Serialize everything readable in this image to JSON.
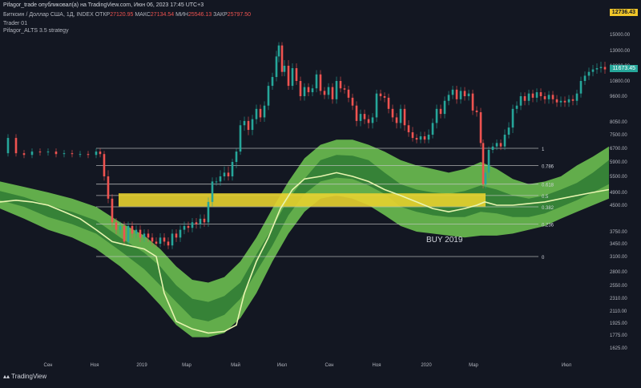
{
  "header": {
    "title": "Pifagor_trade опубликовал(а) на TradingView.com, Июн 06, 2023 17:45 UTC+3",
    "symbol": "Биткоин / Доллар США, 1Д, INDEX",
    "open_label": "ОТКР",
    "open_value": "27120.95",
    "high_label": "МАКС",
    "high_value": "27134.54",
    "low_label": "МИН",
    "low_value": "25546.13",
    "close_label": "ЗАКР",
    "close_value": "25797.50",
    "indicator1": "Trader 01",
    "indicator2": "Pifagor_ALTS 3.5 strategy"
  },
  "price_badges": {
    "current": "12736.43",
    "secondary": "11673.45"
  },
  "footer": {
    "brand": "TradingView"
  },
  "colors": {
    "background": "#131722",
    "band_light": "#7ee05a",
    "band_dark": "#2f7a34",
    "zone": "#e8d22f",
    "fib_line": "#c8c8c8",
    "candle_up": "#26a69a",
    "candle_down": "#ef5350"
  },
  "chart_data": {
    "type": "candlestick with bands",
    "title": "",
    "xlabel": "",
    "ylabel": "",
    "x_ticks": [
      "Сен",
      "Ноя",
      "2019",
      "Мар",
      "Май",
      "Июл",
      "Сен",
      "Ноя",
      "2020",
      "Мар",
      "Июл"
    ],
    "y_ticks": [
      15000,
      13000,
      12000,
      10800,
      9600,
      8050,
      7500,
      6700,
      5900,
      5500,
      4900,
      4500,
      3750,
      3450,
      3100,
      2800,
      2550,
      2310,
      2110,
      1925,
      1775,
      1625
    ],
    "y_tick_labels": [
      "15000.00",
      "13000.00",
      "12000.00",
      "10800.00",
      "9600.00",
      "8050.00",
      "7500.00",
      "6700.00",
      "5900.00",
      "5500.00",
      "4900.00",
      "4500.00",
      "3750.00",
      "3450.00",
      "3100.00",
      "2800.00",
      "2550.00",
      "2310.00",
      "2110.00",
      "1925.00",
      "1775.00",
      "1625.00"
    ],
    "fib_levels": [
      {
        "label": "1",
        "price": 6700
      },
      {
        "label": "0.786",
        "price": 5800
      },
      {
        "label": "0.618",
        "price": 5200
      },
      {
        "label": "0.5",
        "price": 4800
      },
      {
        "label": "0.382",
        "price": 4450
      },
      {
        "label": "0.236",
        "price": 3950
      },
      {
        "label": "0",
        "price": 3100
      }
    ],
    "zone": {
      "label": "BUY 2019",
      "from_price": 4460,
      "to_price": 4870
    },
    "close_series": [
      [
        0,
        6400
      ],
      [
        10,
        7300
      ],
      [
        20,
        6400
      ],
      [
        30,
        6300
      ],
      [
        40,
        6500
      ],
      [
        50,
        6450
      ],
      [
        60,
        6500
      ],
      [
        70,
        6350
      ],
      [
        80,
        6400
      ],
      [
        90,
        6350
      ],
      [
        100,
        6350
      ],
      [
        110,
        6300
      ],
      [
        120,
        6500
      ],
      [
        125,
        6350
      ],
      [
        130,
        5500
      ],
      [
        135,
        4700
      ],
      [
        140,
        4000
      ],
      [
        145,
        3800
      ],
      [
        150,
        3900
      ],
      [
        155,
        3500
      ],
      [
        160,
        3900
      ],
      [
        165,
        3700
      ],
      [
        170,
        3800
      ],
      [
        175,
        3600
      ],
      [
        180,
        3700
      ],
      [
        185,
        3600
      ],
      [
        190,
        3500
      ],
      [
        195,
        3450
      ],
      [
        200,
        3600
      ],
      [
        205,
        3500
      ],
      [
        210,
        3400
      ],
      [
        215,
        3700
      ],
      [
        220,
        3600
      ],
      [
        225,
        3800
      ],
      [
        230,
        3900
      ],
      [
        235,
        3850
      ],
      [
        240,
        4000
      ],
      [
        245,
        3950
      ],
      [
        250,
        4100
      ],
      [
        255,
        4000
      ],
      [
        260,
        4600
      ],
      [
        265,
        5300
      ],
      [
        270,
        5300
      ],
      [
        275,
        5500
      ],
      [
        280,
        5600
      ],
      [
        285,
        5500
      ],
      [
        290,
        5900
      ],
      [
        295,
        6500
      ],
      [
        300,
        7900
      ],
      [
        305,
        8100
      ],
      [
        310,
        7700
      ],
      [
        315,
        8200
      ],
      [
        320,
        8800
      ],
      [
        325,
        8300
      ],
      [
        330,
        9000
      ],
      [
        335,
        10400
      ],
      [
        340,
        11100
      ],
      [
        345,
        12600
      ],
      [
        348,
        13600
      ],
      [
        352,
        11500
      ],
      [
        355,
        12000
      ],
      [
        360,
        10400
      ],
      [
        365,
        11800
      ],
      [
        370,
        10800
      ],
      [
        375,
        9600
      ],
      [
        380,
        10300
      ],
      [
        385,
        9900
      ],
      [
        390,
        10200
      ],
      [
        395,
        11300
      ],
      [
        400,
        10000
      ],
      [
        405,
        9700
      ],
      [
        410,
        10300
      ],
      [
        415,
        9400
      ],
      [
        420,
        10800
      ],
      [
        425,
        10200
      ],
      [
        430,
        10100
      ],
      [
        435,
        9500
      ],
      [
        440,
        9000
      ],
      [
        445,
        8100
      ],
      [
        450,
        8500
      ],
      [
        455,
        8200
      ],
      [
        460,
        8000
      ],
      [
        465,
        8300
      ],
      [
        470,
        9800
      ],
      [
        475,
        9600
      ],
      [
        480,
        9500
      ],
      [
        485,
        8800
      ],
      [
        490,
        8300
      ],
      [
        495,
        8000
      ],
      [
        500,
        8800
      ],
      [
        505,
        7900
      ],
      [
        510,
        7600
      ],
      [
        515,
        7300
      ],
      [
        520,
        7200
      ],
      [
        525,
        7400
      ],
      [
        530,
        7200
      ],
      [
        535,
        7500
      ],
      [
        540,
        8000
      ],
      [
        545,
        8800
      ],
      [
        550,
        8500
      ],
      [
        555,
        9300
      ],
      [
        560,
        9700
      ],
      [
        565,
        10100
      ],
      [
        570,
        9400
      ],
      [
        575,
        10000
      ],
      [
        580,
        9600
      ],
      [
        585,
        9800
      ],
      [
        590,
        8700
      ],
      [
        595,
        8600
      ],
      [
        600,
        7000
      ],
      [
        603,
        5200
      ],
      [
        606,
        5600
      ],
      [
        610,
        6600
      ],
      [
        615,
        6800
      ],
      [
        620,
        7000
      ],
      [
        625,
        6800
      ],
      [
        630,
        7500
      ],
      [
        635,
        7800
      ],
      [
        640,
        8800
      ],
      [
        645,
        9000
      ],
      [
        650,
        9600
      ],
      [
        655,
        9300
      ],
      [
        660,
        9800
      ],
      [
        665,
        9500
      ],
      [
        670,
        9900
      ],
      [
        675,
        9600
      ],
      [
        680,
        9400
      ],
      [
        685,
        9700
      ],
      [
        690,
        9400
      ],
      [
        695,
        9200
      ],
      [
        700,
        9300
      ],
      [
        705,
        9200
      ],
      [
        710,
        9400
      ],
      [
        715,
        9300
      ],
      [
        720,
        9800
      ],
      [
        725,
        10800
      ],
      [
        730,
        11200
      ],
      [
        735,
        11500
      ],
      [
        740,
        11700
      ],
      [
        745,
        11800
      ],
      [
        750,
        11900
      ],
      [
        755,
        11700
      ]
    ],
    "ma_line": [
      [
        0,
        4600
      ],
      [
        20,
        4650
      ],
      [
        40,
        4600
      ],
      [
        60,
        4500
      ],
      [
        80,
        4300
      ],
      [
        100,
        4100
      ],
      [
        120,
        3800
      ],
      [
        140,
        3500
      ],
      [
        160,
        3400
      ],
      [
        180,
        3300
      ],
      [
        195,
        3100
      ],
      [
        205,
        2400
      ],
      [
        220,
        1950
      ],
      [
        240,
        1850
      ],
      [
        260,
        1800
      ],
      [
        280,
        1820
      ],
      [
        295,
        1900
      ],
      [
        305,
        2400
      ],
      [
        320,
        3000
      ],
      [
        335,
        3600
      ],
      [
        350,
        4400
      ],
      [
        365,
        5000
      ],
      [
        380,
        5400
      ],
      [
        400,
        5500
      ],
      [
        420,
        5600
      ],
      [
        440,
        5500
      ],
      [
        460,
        5300
      ],
      [
        480,
        5000
      ],
      [
        500,
        4800
      ],
      [
        520,
        4600
      ],
      [
        540,
        4400
      ],
      [
        560,
        4300
      ],
      [
        580,
        4400
      ],
      [
        595,
        4500
      ],
      [
        605,
        4600
      ],
      [
        620,
        4500
      ],
      [
        640,
        4500
      ],
      [
        660,
        4550
      ],
      [
        680,
        4600
      ],
      [
        700,
        4700
      ],
      [
        720,
        4800
      ],
      [
        740,
        4900
      ],
      [
        760,
        5000
      ]
    ],
    "band_outer_top": [
      [
        0,
        5300
      ],
      [
        30,
        5100
      ],
      [
        60,
        4900
      ],
      [
        90,
        4700
      ],
      [
        120,
        4450
      ],
      [
        150,
        4000
      ],
      [
        180,
        3650
      ],
      [
        200,
        3300
      ],
      [
        220,
        2900
      ],
      [
        240,
        2650
      ],
      [
        260,
        2600
      ],
      [
        280,
        2700
      ],
      [
        300,
        3000
      ],
      [
        320,
        3600
      ],
      [
        340,
        4400
      ],
      [
        360,
        5300
      ],
      [
        380,
        6100
      ],
      [
        400,
        6900
      ],
      [
        420,
        7200
      ],
      [
        440,
        7200
      ],
      [
        460,
        6900
      ],
      [
        480,
        6500
      ],
      [
        500,
        6000
      ],
      [
        520,
        5800
      ],
      [
        540,
        5700
      ],
      [
        560,
        5600
      ],
      [
        580,
        5700
      ],
      [
        600,
        5900
      ],
      [
        620,
        5700
      ],
      [
        640,
        5400
      ],
      [
        660,
        5200
      ],
      [
        680,
        5300
      ],
      [
        700,
        5500
      ],
      [
        720,
        5800
      ],
      [
        740,
        6200
      ],
      [
        760,
        6800
      ]
    ],
    "band_outer_bottom": [
      [
        0,
        4400
      ],
      [
        30,
        4100
      ],
      [
        60,
        3800
      ],
      [
        90,
        3600
      ],
      [
        120,
        3300
      ],
      [
        150,
        2900
      ],
      [
        180,
        2500
      ],
      [
        200,
        2200
      ],
      [
        220,
        1900
      ],
      [
        240,
        1750
      ],
      [
        260,
        1750
      ],
      [
        280,
        1800
      ],
      [
        300,
        2000
      ],
      [
        320,
        2400
      ],
      [
        340,
        3000
      ],
      [
        360,
        3700
      ],
      [
        380,
        4300
      ],
      [
        400,
        4700
      ],
      [
        420,
        4800
      ],
      [
        440,
        4700
      ],
      [
        460,
        4500
      ],
      [
        480,
        4200
      ],
      [
        500,
        3900
      ],
      [
        520,
        3750
      ],
      [
        540,
        3700
      ],
      [
        560,
        3650
      ],
      [
        580,
        3600
      ],
      [
        600,
        3650
      ],
      [
        620,
        3650
      ],
      [
        640,
        3700
      ],
      [
        660,
        3800
      ],
      [
        680,
        3900
      ],
      [
        700,
        4100
      ],
      [
        720,
        4300
      ],
      [
        740,
        4500
      ],
      [
        760,
        4700
      ]
    ],
    "band_inner_top": [
      [
        0,
        4950
      ],
      [
        30,
        4750
      ],
      [
        60,
        4500
      ],
      [
        90,
        4300
      ],
      [
        120,
        4050
      ],
      [
        150,
        3600
      ],
      [
        180,
        3200
      ],
      [
        200,
        2900
      ],
      [
        220,
        2550
      ],
      [
        240,
        2300
      ],
      [
        260,
        2250
      ],
      [
        280,
        2350
      ],
      [
        300,
        2600
      ],
      [
        320,
        3150
      ],
      [
        340,
        3850
      ],
      [
        360,
        4700
      ],
      [
        380,
        5400
      ],
      [
        400,
        6000
      ],
      [
        420,
        6300
      ],
      [
        440,
        6250
      ],
      [
        460,
        6000
      ],
      [
        480,
        5600
      ],
      [
        500,
        5200
      ],
      [
        520,
        5000
      ],
      [
        540,
        4900
      ],
      [
        560,
        4850
      ],
      [
        580,
        4950
      ],
      [
        600,
        5150
      ],
      [
        620,
        5000
      ],
      [
        640,
        4800
      ],
      [
        660,
        4700
      ],
      [
        680,
        4800
      ],
      [
        700,
        5000
      ],
      [
        720,
        5250
      ],
      [
        740,
        5600
      ],
      [
        760,
        6000
      ]
    ],
    "band_inner_bottom": [
      [
        0,
        4650
      ],
      [
        30,
        4450
      ],
      [
        60,
        4150
      ],
      [
        90,
        3950
      ],
      [
        120,
        3700
      ],
      [
        150,
        3250
      ],
      [
        180,
        2850
      ],
      [
        200,
        2550
      ],
      [
        220,
        2250
      ],
      [
        240,
        2000
      ],
      [
        260,
        1950
      ],
      [
        280,
        2050
      ],
      [
        300,
        2300
      ],
      [
        320,
        2800
      ],
      [
        340,
        3400
      ],
      [
        360,
        4200
      ],
      [
        380,
        4850
      ],
      [
        400,
        5300
      ],
      [
        420,
        5450
      ],
      [
        440,
        5400
      ],
      [
        460,
        5150
      ],
      [
        480,
        4850
      ],
      [
        500,
        4450
      ],
      [
        520,
        4300
      ],
      [
        540,
        4200
      ],
      [
        560,
        4150
      ],
      [
        580,
        4150
      ],
      [
        600,
        4300
      ],
      [
        620,
        4250
      ],
      [
        640,
        4150
      ],
      [
        660,
        4150
      ],
      [
        680,
        4250
      ],
      [
        700,
        4450
      ],
      [
        720,
        4650
      ],
      [
        740,
        4900
      ],
      [
        760,
        5200
      ]
    ]
  }
}
